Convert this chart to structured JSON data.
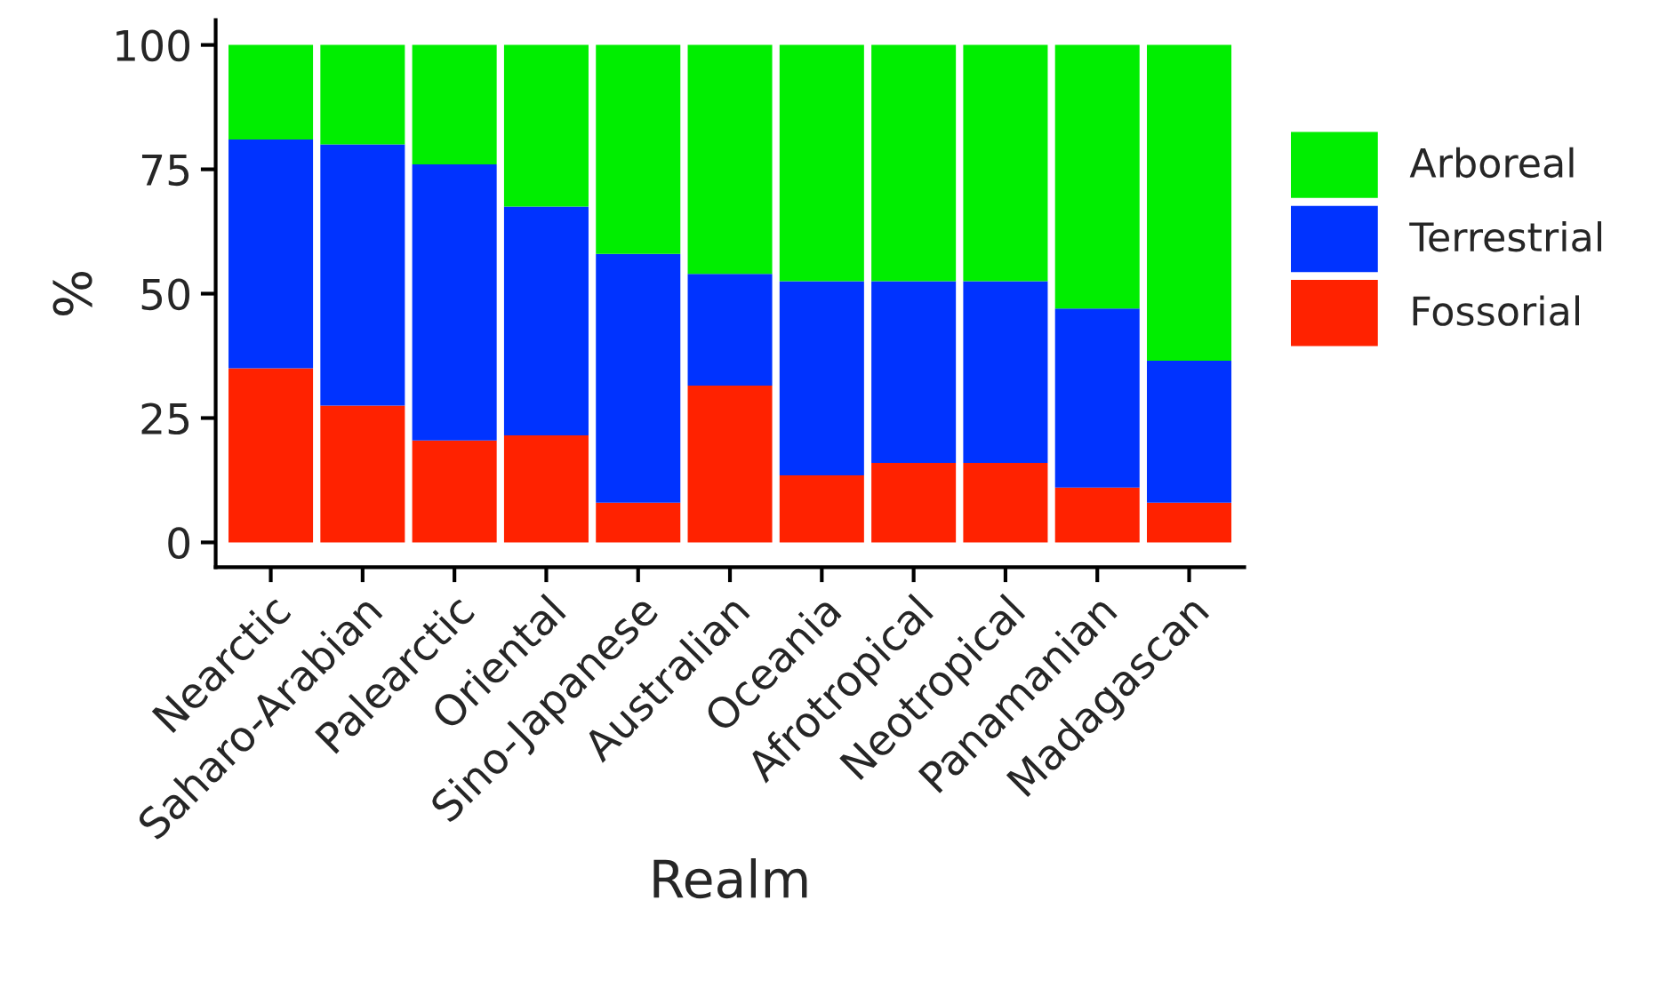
{
  "chart_data": {
    "type": "bar",
    "stacked": true,
    "xlabel": "Realm",
    "ylabel": "%",
    "legend": "right",
    "grid": false,
    "categories": [
      "Nearctic",
      "Saharo-Arabian",
      "Palearctic",
      "Oriental",
      "Sino-Japanese",
      "Australian",
      "Oceania",
      "Afrotropical",
      "Neotropical",
      "Panamanian",
      "Madagascan"
    ],
    "ylim": [
      -5,
      105
    ],
    "yticks": [
      0,
      25,
      50,
      75,
      100
    ],
    "series": [
      {
        "name": "Fossorial",
        "color": "#ff2200",
        "values": [
          35,
          27.5,
          20.5,
          21.5,
          8,
          31.5,
          13.5,
          16,
          16,
          11,
          8
        ]
      },
      {
        "name": "Terrestrial",
        "color": "#0033ff",
        "values": [
          46,
          52.5,
          55.5,
          46,
          50,
          22.5,
          39,
          36.5,
          36.5,
          36,
          28.5
        ]
      },
      {
        "name": "Arboreal",
        "color": "#00ee00",
        "values": [
          19,
          20,
          24,
          32.5,
          42,
          46,
          47.5,
          47.5,
          47.5,
          53,
          63.5
        ]
      }
    ]
  }
}
